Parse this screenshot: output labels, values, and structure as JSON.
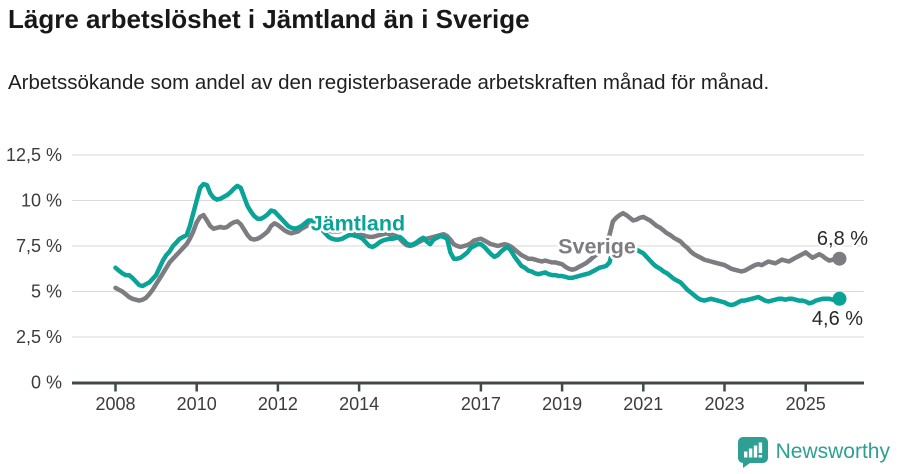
{
  "header": {
    "title": "Lägre arbetslöshet i Jämtland än i Sverige",
    "subtitle": "Arbetssökande som andel av den registerbaserade arbetskraften månad för månad."
  },
  "theme": {
    "jamtland_color": "#0aa397",
    "sverige_color": "#7d7c80",
    "grid_color": "#dadada",
    "axis_color": "#41484c",
    "tick_text_color": "#3c3c3c",
    "end_label_color": "#2a2a2a",
    "brand_color": "#2d9f93"
  },
  "footer": {
    "brand": "Newsworthy",
    "brand_icon": "bar-chart-speech-bubble"
  },
  "chart_data": {
    "type": "line",
    "unit": "%",
    "frequency": "monthly",
    "x_start": "2008-01",
    "x_end": "2025-11",
    "ylim": [
      0,
      12.5
    ],
    "grid": "horizontal",
    "y_tick_values": [
      0,
      2.5,
      5,
      7.5,
      10,
      12.5
    ],
    "y_tick_labels": [
      "0 %",
      "2,5 %",
      "5 %",
      "7,5 %",
      "10 %",
      "12,5 %"
    ],
    "x_tick_years": [
      2008,
      2010,
      2012,
      2014,
      2017,
      2019,
      2021,
      2023,
      2025
    ],
    "x_tick_labels": [
      "2008",
      "2010",
      "2012",
      "2014",
      "2017",
      "2019",
      "2021",
      "2023",
      "2025"
    ],
    "series": [
      {
        "name": "Jämtland",
        "color": "#0aa397",
        "end_label": "4,6 %",
        "end_value": 4.6,
        "label_x_year": 2013.97,
        "label_y_value": 8.35,
        "values": [
          6.3,
          6.15,
          6.0,
          5.9,
          5.9,
          5.75,
          5.55,
          5.35,
          5.3,
          5.4,
          5.5,
          5.7,
          5.9,
          6.3,
          6.7,
          7.0,
          7.2,
          7.5,
          7.7,
          7.9,
          8.0,
          8.1,
          8.6,
          9.3,
          10.0,
          10.7,
          10.9,
          10.85,
          10.4,
          10.15,
          10.05,
          10.1,
          10.2,
          10.3,
          10.45,
          10.65,
          10.8,
          10.7,
          10.2,
          9.7,
          9.4,
          9.15,
          9.0,
          9.0,
          9.1,
          9.25,
          9.45,
          9.4,
          9.2,
          9.0,
          8.8,
          8.6,
          8.5,
          8.45,
          8.5,
          8.6,
          8.75,
          8.9,
          8.9,
          8.8,
          8.6,
          8.4,
          8.2,
          8.0,
          7.9,
          7.85,
          7.85,
          7.9,
          8.0,
          8.1,
          8.1,
          8.05,
          8.0,
          7.9,
          7.7,
          7.5,
          7.45,
          7.55,
          7.7,
          7.8,
          7.85,
          7.9,
          7.9,
          7.95,
          8.0,
          7.85,
          7.65,
          7.55,
          7.6,
          7.7,
          7.85,
          7.95,
          7.75,
          7.6,
          7.85,
          7.95,
          8.05,
          8.0,
          7.9,
          7.15,
          6.8,
          6.8,
          6.85,
          7.0,
          7.15,
          7.4,
          7.5,
          7.6,
          7.6,
          7.45,
          7.25,
          7.05,
          6.9,
          7.0,
          7.2,
          7.35,
          7.45,
          7.2,
          6.9,
          6.65,
          6.4,
          6.3,
          6.15,
          6.1,
          6.0,
          5.95,
          6.0,
          6.05,
          5.95,
          5.9,
          5.9,
          5.85,
          5.85,
          5.8,
          5.75,
          5.75,
          5.8,
          5.85,
          5.9,
          5.95,
          6.0,
          6.1,
          6.2,
          6.3,
          6.35,
          6.4,
          6.6,
          7.3,
          7.5,
          7.55,
          7.5,
          7.45,
          7.4,
          7.4,
          7.3,
          7.2,
          7.1,
          6.9,
          6.7,
          6.5,
          6.35,
          6.25,
          6.1,
          6.0,
          5.85,
          5.7,
          5.6,
          5.5,
          5.3,
          5.1,
          4.95,
          4.8,
          4.65,
          4.55,
          4.5,
          4.55,
          4.6,
          4.55,
          4.5,
          4.45,
          4.4,
          4.3,
          4.25,
          4.3,
          4.4,
          4.5,
          4.5,
          4.55,
          4.6,
          4.65,
          4.7,
          4.6,
          4.5,
          4.45,
          4.5,
          4.55,
          4.6,
          4.6,
          4.55,
          4.6,
          4.6,
          4.55,
          4.5,
          4.5,
          4.45,
          4.35,
          4.4,
          4.5,
          4.55,
          4.6,
          4.6,
          4.6,
          4.55,
          4.6,
          4.6
        ]
      },
      {
        "name": "Sverige",
        "color": "#7d7c80",
        "end_label": "6,8 %",
        "end_value": 6.8,
        "label_x_year": 2019.86,
        "label_y_value": 7.1,
        "values": [
          5.2,
          5.1,
          5.0,
          4.85,
          4.7,
          4.6,
          4.55,
          4.5,
          4.55,
          4.65,
          4.85,
          5.1,
          5.4,
          5.7,
          6.0,
          6.3,
          6.6,
          6.8,
          7.0,
          7.2,
          7.4,
          7.6,
          7.9,
          8.3,
          8.8,
          9.1,
          9.2,
          8.9,
          8.6,
          8.45,
          8.5,
          8.55,
          8.5,
          8.55,
          8.7,
          8.8,
          8.85,
          8.7,
          8.4,
          8.1,
          7.9,
          7.85,
          7.9,
          8.0,
          8.15,
          8.3,
          8.6,
          8.75,
          8.65,
          8.5,
          8.35,
          8.25,
          8.2,
          8.25,
          8.3,
          8.45,
          8.55,
          8.65,
          8.6,
          8.55,
          8.5,
          8.45,
          8.4,
          8.35,
          8.3,
          8.3,
          8.3,
          8.35,
          8.4,
          8.4,
          8.35,
          8.25,
          8.15,
          8.1,
          8.05,
          8.0,
          8.0,
          8.05,
          8.1,
          8.15,
          8.2,
          8.15,
          8.1,
          8.05,
          7.9,
          7.7,
          7.55,
          7.5,
          7.55,
          7.65,
          7.75,
          7.85,
          7.9,
          7.95,
          8.0,
          8.05,
          8.1,
          8.15,
          8.05,
          7.85,
          7.6,
          7.5,
          7.45,
          7.5,
          7.55,
          7.65,
          7.8,
          7.85,
          7.9,
          7.8,
          7.7,
          7.6,
          7.55,
          7.5,
          7.55,
          7.6,
          7.55,
          7.45,
          7.3,
          7.15,
          7.0,
          6.9,
          6.8,
          6.8,
          6.75,
          6.7,
          6.65,
          6.7,
          6.65,
          6.6,
          6.6,
          6.55,
          6.5,
          6.35,
          6.25,
          6.2,
          6.25,
          6.35,
          6.45,
          6.55,
          6.7,
          6.85,
          7.0,
          7.2,
          7.6,
          7.75,
          8.1,
          8.85,
          9.05,
          9.2,
          9.3,
          9.2,
          9.05,
          8.9,
          8.95,
          9.05,
          9.1,
          9.0,
          8.9,
          8.75,
          8.6,
          8.5,
          8.35,
          8.2,
          8.1,
          7.95,
          7.85,
          7.75,
          7.55,
          7.4,
          7.2,
          7.05,
          6.95,
          6.85,
          6.75,
          6.7,
          6.65,
          6.6,
          6.55,
          6.5,
          6.45,
          6.35,
          6.25,
          6.2,
          6.15,
          6.1,
          6.15,
          6.25,
          6.35,
          6.45,
          6.5,
          6.45,
          6.55,
          6.65,
          6.6,
          6.55,
          6.65,
          6.75,
          6.7,
          6.65,
          6.75,
          6.85,
          6.95,
          7.05,
          7.15,
          7.0,
          6.85,
          6.95,
          7.05,
          6.95,
          6.8,
          6.7,
          6.75,
          6.8,
          6.8
        ]
      }
    ]
  }
}
